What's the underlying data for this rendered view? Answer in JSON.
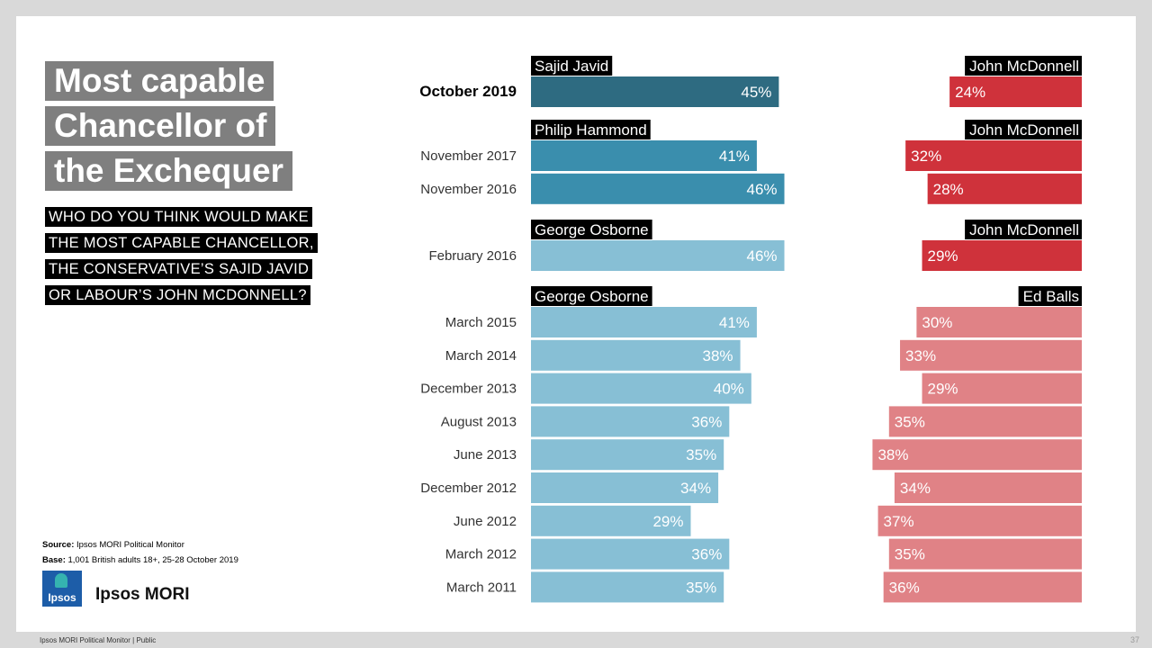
{
  "title": {
    "lines": [
      "Most capable",
      "Chancellor of",
      "the Exchequer"
    ]
  },
  "question": {
    "lines": [
      "WHO DO YOU THINK WOULD MAKE",
      "THE MOST CAPABLE CHANCELLOR,",
      "THE CONSERVATIVE’S SAJID JAVID",
      "OR LABOUR’S JOHN MCDONNELL?"
    ]
  },
  "source": {
    "source_label": "Source:",
    "source_text": " Ipsos MORI Political Monitor",
    "base_label": "Base:",
    "base_text": "  1,001 British adults 18+, 25-28 October 2019"
  },
  "brand": {
    "logo_text": "Ipsos",
    "name": "Ipsos MORI"
  },
  "footer": {
    "text": "Ipsos MORI Political Monitor | Public",
    "page_number": "37"
  },
  "colors": {
    "con_dark": "#2e6b81",
    "con_mid": "#3a8ead",
    "con_light": "#87bfd5",
    "lab_dark": "#cf323b",
    "lab_light": "#e08286"
  },
  "chart_data": {
    "type": "bar",
    "title": "Most capable Chancellor of the Exchequer",
    "unit": "%",
    "xlim": [
      0,
      50
    ],
    "groups": [
      {
        "con_name": "Sajid Javid",
        "lab_name": "John McDonnell",
        "con_color": "con_dark",
        "lab_color": "lab_dark",
        "rows": [
          {
            "label": "October 2019",
            "con": 45,
            "lab": 24,
            "highlight": true
          }
        ]
      },
      {
        "con_name": "Philip Hammond",
        "lab_name": "John McDonnell",
        "con_color": "con_mid",
        "lab_color": "lab_dark",
        "rows": [
          {
            "label": "November 2017",
            "con": 41,
            "lab": 32
          },
          {
            "label": "November 2016",
            "con": 46,
            "lab": 28
          }
        ]
      },
      {
        "con_name": "George Osborne",
        "lab_name": "John McDonnell",
        "con_color": "con_light",
        "lab_color": "lab_dark",
        "rows": [
          {
            "label": "February 2016",
            "con": 46,
            "lab": 29
          }
        ]
      },
      {
        "con_name": "George Osborne",
        "lab_name": "Ed Balls",
        "con_color": "con_light",
        "lab_color": "lab_light",
        "rows": [
          {
            "label": "March 2015",
            "con": 41,
            "lab": 30
          },
          {
            "label": "March 2014",
            "con": 38,
            "lab": 33
          },
          {
            "label": "December 2013",
            "con": 40,
            "lab": 29
          },
          {
            "label": "August 2013",
            "con": 36,
            "lab": 35
          },
          {
            "label": "June 2013",
            "con": 35,
            "lab": 38
          },
          {
            "label": "December 2012",
            "con": 34,
            "lab": 34
          },
          {
            "label": "June 2012",
            "con": 29,
            "lab": 37
          },
          {
            "label": "March 2012",
            "con": 36,
            "lab": 35
          },
          {
            "label": "March 2011",
            "con": 35,
            "lab": 36
          }
        ]
      }
    ]
  }
}
